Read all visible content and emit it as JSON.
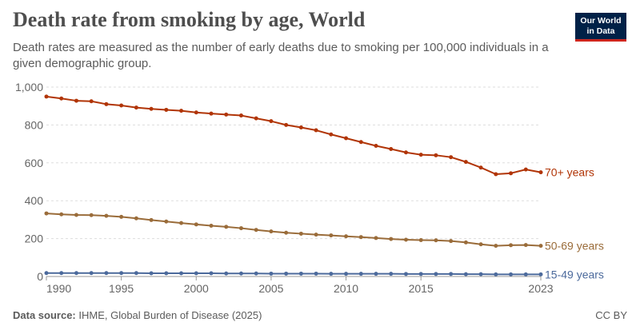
{
  "header": {
    "title": "Death rate from smoking by age, World",
    "subtitle": "Death rates are measured as the number of early deaths due to smoking per 100,000 individuals in a given demographic group."
  },
  "logo": {
    "line1": "Our World",
    "line2": "in Data"
  },
  "footer": {
    "source_label": "Data source:",
    "source_text": "IHME, Global Burden of Disease (2025)",
    "license": "CC BY"
  },
  "colors": {
    "grid": "#dddddd",
    "axis_text": "#666666"
  },
  "chart_data": {
    "type": "line",
    "xlim": [
      1990,
      2023
    ],
    "ylim": [
      0,
      1000
    ],
    "xticks": [
      1990,
      1995,
      2000,
      2005,
      2010,
      2015,
      2023
    ],
    "xtick_labels": [
      "1990",
      "1995",
      "2000",
      "2005",
      "2010",
      "2015",
      "2023"
    ],
    "yticks": [
      0,
      200,
      400,
      600,
      800,
      1000
    ],
    "ytick_labels": [
      "0",
      "200",
      "400",
      "600",
      "800",
      "1,000"
    ],
    "grid": "horizontal dashed",
    "legend": "inline labels at line ends",
    "x": [
      1990,
      1991,
      1992,
      1993,
      1994,
      1995,
      1996,
      1997,
      1998,
      1999,
      2000,
      2001,
      2002,
      2003,
      2004,
      2005,
      2006,
      2007,
      2008,
      2009,
      2010,
      2011,
      2012,
      2013,
      2014,
      2015,
      2016,
      2017,
      2018,
      2019,
      2020,
      2021,
      2022,
      2023
    ],
    "series": [
      {
        "name": "70+ years",
        "color": "#b13507",
        "values": [
          950,
          940,
          928,
          925,
          910,
          903,
          892,
          885,
          880,
          875,
          866,
          860,
          855,
          850,
          835,
          820,
          800,
          787,
          772,
          750,
          730,
          710,
          690,
          673,
          655,
          643,
          640,
          630,
          605,
          575,
          540,
          545,
          565,
          550
        ]
      },
      {
        "name": "50-69 years",
        "color": "#9a6c3a",
        "values": [
          333,
          328,
          325,
          324,
          320,
          315,
          307,
          298,
          290,
          282,
          275,
          268,
          262,
          255,
          246,
          238,
          231,
          226,
          221,
          217,
          212,
          208,
          203,
          198,
          194,
          192,
          191,
          187,
          180,
          170,
          162,
          165,
          166,
          162
        ]
      },
      {
        "name": "15-49 years",
        "color": "#4c6a9c",
        "values": [
          18,
          18,
          18,
          18,
          18,
          18,
          18,
          17,
          17,
          17,
          17,
          17,
          16,
          16,
          16,
          15,
          15,
          15,
          15,
          14,
          14,
          14,
          14,
          14,
          13,
          13,
          13,
          13,
          12,
          12,
          11,
          11,
          11,
          11
        ]
      }
    ]
  }
}
